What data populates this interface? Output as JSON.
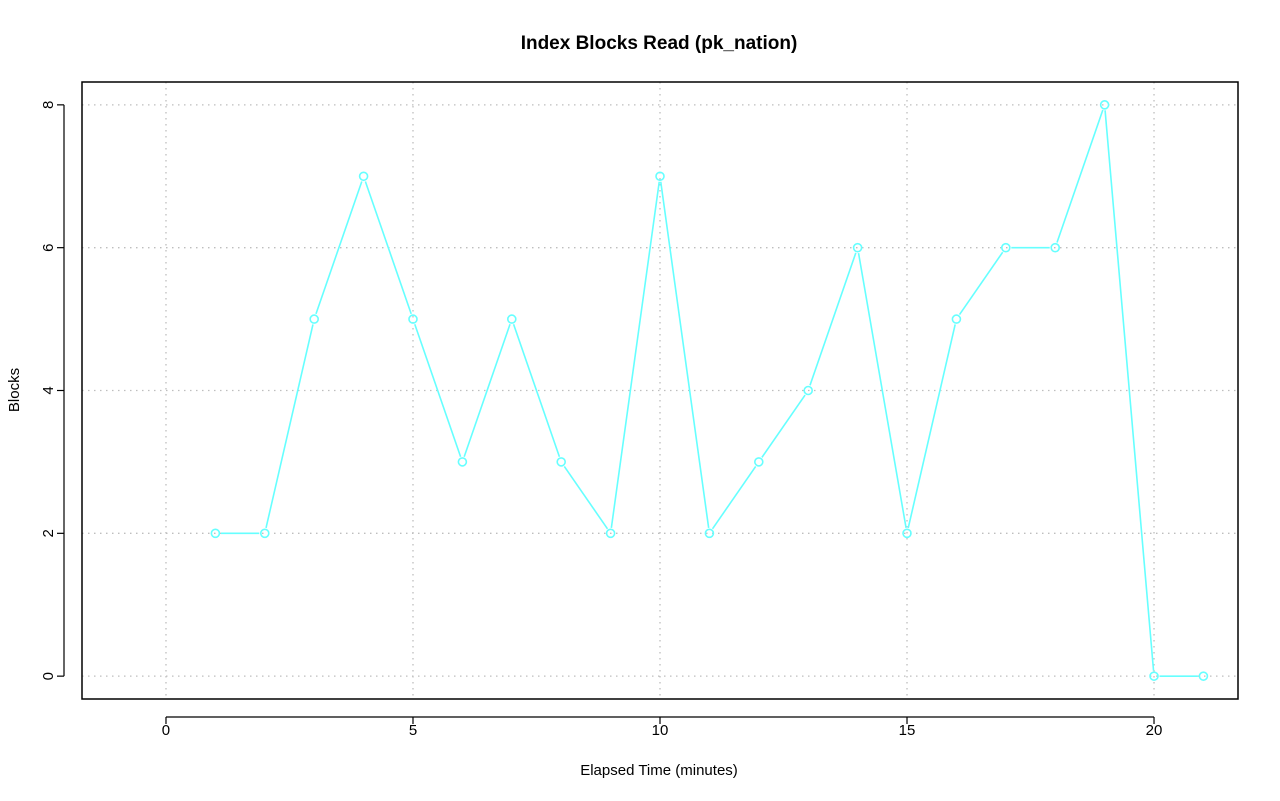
{
  "chart_data": {
    "type": "line",
    "title": "Index Blocks Read (pk_nation)",
    "xlabel": "Elapsed Time (minutes)",
    "ylabel": "Blocks",
    "xlim": [
      -1.7,
      21.7
    ],
    "ylim": [
      -0.32,
      8.32
    ],
    "x_ticks": [
      0,
      5,
      10,
      15,
      20
    ],
    "y_ticks": [
      0,
      2,
      4,
      6,
      8
    ],
    "grid": true,
    "legend": "none",
    "series": [
      {
        "color": "#66ffff",
        "marker": "open-circle",
        "x": [
          1,
          2,
          3,
          4,
          5,
          6,
          7,
          8,
          9,
          10,
          11,
          12,
          13,
          14,
          15,
          16,
          17,
          18,
          19,
          20,
          21
        ],
        "y": [
          2,
          2,
          5,
          7,
          5,
          3,
          5,
          3,
          2,
          7,
          2,
          3,
          4,
          6,
          2,
          5,
          6,
          6,
          8,
          0,
          0
        ]
      }
    ],
    "colors": {
      "series": "#66ffff",
      "grid": "#bebebe",
      "axis": "#000000"
    }
  }
}
